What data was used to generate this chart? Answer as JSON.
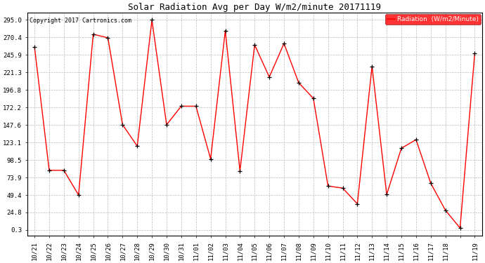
{
  "title": "Solar Radiation Avg per Day W/m2/minute 20171119",
  "copyright": "Copyright 2017 Cartronics.com",
  "legend_label": "Radiation  (W/m2/Minute)",
  "line_color": "red",
  "marker_color": "black",
  "background_color": "white",
  "grid_color": "#bbbbbb",
  "ylim_min": -8,
  "ylim_max": 305,
  "yticks": [
    0.3,
    24.8,
    49.4,
    73.9,
    98.5,
    123.1,
    147.6,
    172.2,
    196.8,
    221.3,
    245.9,
    270.4,
    295.0
  ],
  "labels": [
    "10/21",
    "10/22",
    "10/23",
    "10/24",
    "10/25",
    "10/26",
    "10/27",
    "10/28",
    "10/29",
    "10/30",
    "10/31",
    "11/01",
    "11/02",
    "11/03",
    "11/04",
    "11/05",
    "11/06",
    "11/07",
    "11/08",
    "11/09",
    "11/10",
    "11/11",
    "11/12",
    "11/13",
    "11/14",
    "11/15",
    "11/16",
    "11/17",
    "11/18",
    " ",
    "11/19"
  ],
  "values": [
    257.0,
    84.0,
    84.0,
    49.4,
    275.0,
    270.0,
    148.0,
    118.0,
    295.0,
    148.0,
    174.0,
    174.0,
    100.0,
    280.0,
    83.0,
    260.0,
    215.0,
    262.0,
    207.0,
    185.0,
    62.0,
    59.0,
    37.0,
    230.0,
    50.0,
    115.0,
    127.0,
    66.0,
    28.0,
    3.0,
    248.0
  ],
  "title_fontsize": 9,
  "tick_fontsize": 6.5,
  "legend_fontsize": 6.5,
  "copyright_fontsize": 6
}
